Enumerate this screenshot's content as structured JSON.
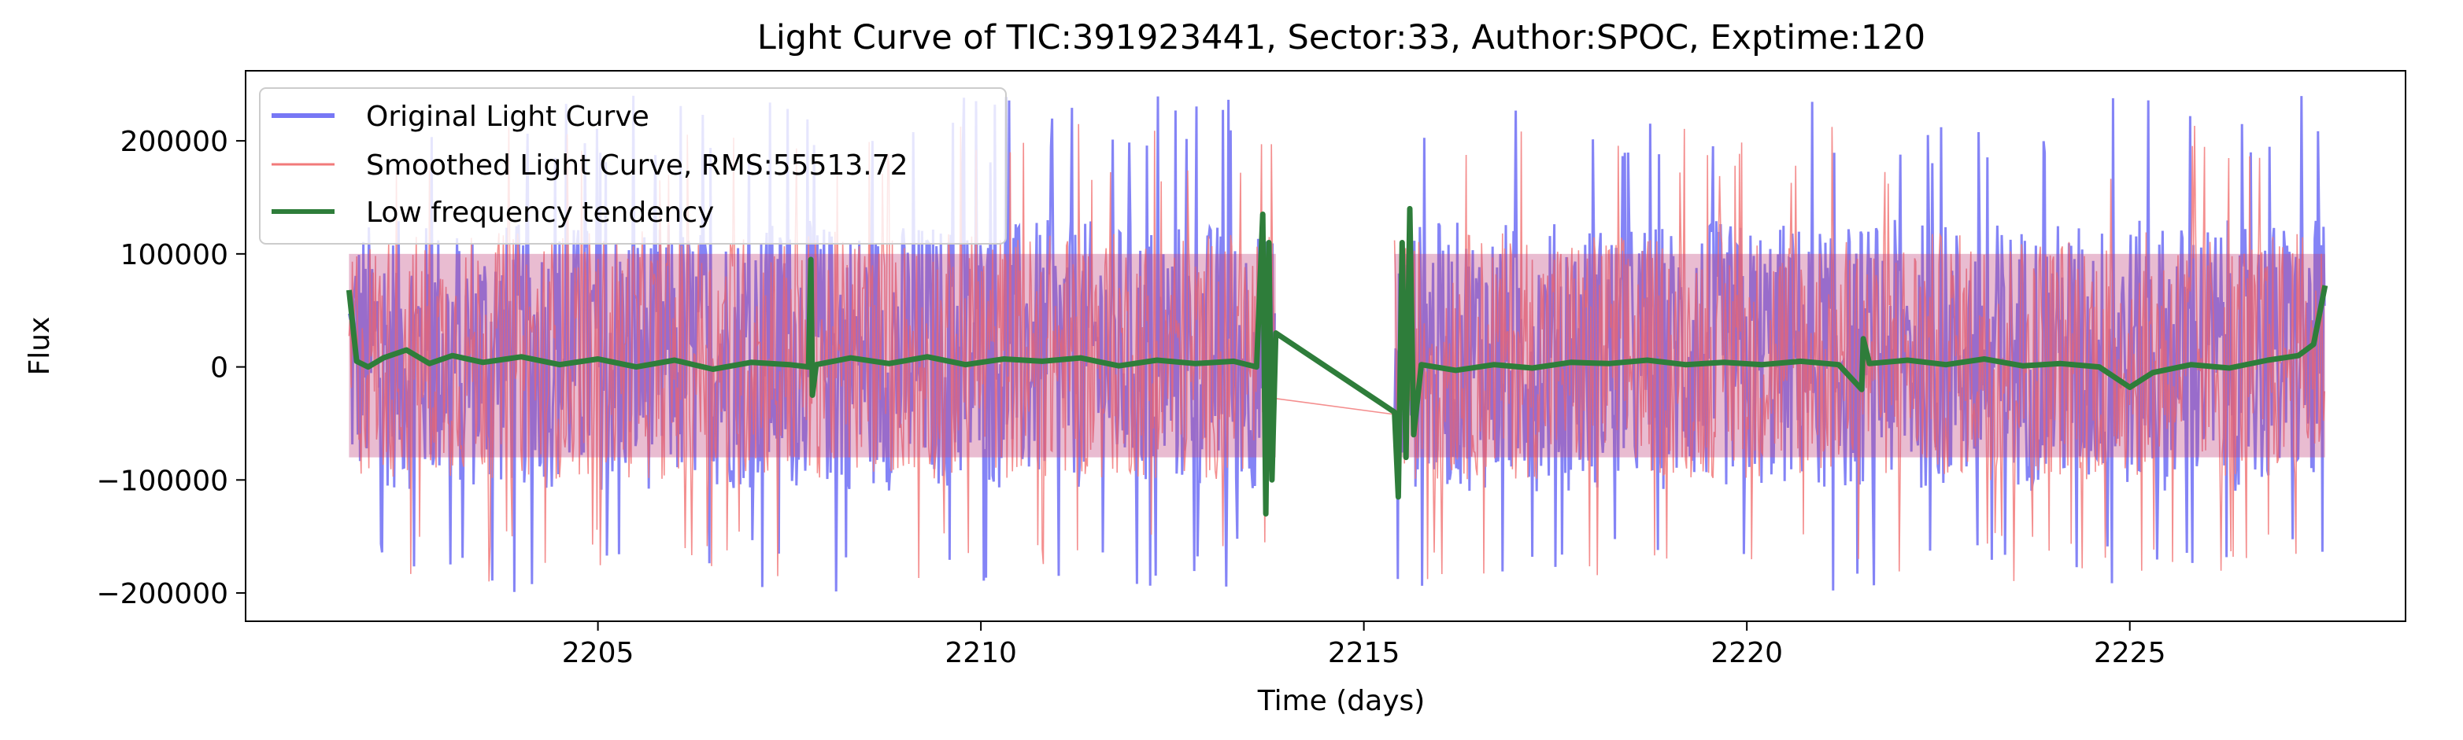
{
  "chart_data": {
    "type": "line",
    "title": "Light Curve of TIC:391923441, Sector:33, Author:SPOC, Exptime:120",
    "xlabel": "Time (days)",
    "ylabel": "Flux",
    "xlim": [
      2200.4,
      2228.6
    ],
    "ylim": [
      -225000,
      262000
    ],
    "xticks": [
      2205,
      2210,
      2215,
      2220,
      2225
    ],
    "xtick_labels": [
      "2205",
      "2210",
      "2215",
      "2220",
      "2225"
    ],
    "yticks": [
      -200000,
      -100000,
      0,
      100000,
      200000
    ],
    "ytick_labels": [
      "−200000",
      "−100000",
      "0",
      "100000",
      "200000"
    ],
    "grid": false,
    "legend_position": "top-left",
    "segments": [
      [
        2201.75,
        2213.85
      ],
      [
        2215.4,
        2227.55
      ]
    ],
    "series": [
      {
        "name": "Original Light Curve",
        "color": "#7777f5",
        "kind": "noise",
        "envelope_min": -200000,
        "envelope_max": 240000,
        "band": [
          -110000,
          130000
        ]
      },
      {
        "name": "Smoothed Light Curve, RMS:55513.72",
        "color": "#f27a7a",
        "kind": "noise",
        "envelope_min": -190000,
        "envelope_max": 215000,
        "band": [
          -100000,
          120000
        ]
      },
      {
        "name": "Low frequency tendency",
        "color": "#2e7d3a",
        "kind": "trend",
        "points": [
          [
            2201.75,
            68000
          ],
          [
            2201.85,
            5000
          ],
          [
            2202.0,
            0
          ],
          [
            2202.2,
            8000
          ],
          [
            2202.5,
            15000
          ],
          [
            2202.8,
            3000
          ],
          [
            2203.1,
            10000
          ],
          [
            2203.5,
            4000
          ],
          [
            2204.0,
            9000
          ],
          [
            2204.5,
            2000
          ],
          [
            2205.0,
            7000
          ],
          [
            2205.5,
            0
          ],
          [
            2206.0,
            6000
          ],
          [
            2206.5,
            -2000
          ],
          [
            2207.0,
            4000
          ],
          [
            2207.5,
            2000
          ],
          [
            2207.75,
            0
          ],
          [
            2207.78,
            95000
          ],
          [
            2207.8,
            -25000
          ],
          [
            2207.85,
            2000
          ],
          [
            2208.3,
            8000
          ],
          [
            2208.8,
            3000
          ],
          [
            2209.3,
            9000
          ],
          [
            2209.8,
            2000
          ],
          [
            2210.3,
            7000
          ],
          [
            2210.8,
            5000
          ],
          [
            2211.3,
            8000
          ],
          [
            2211.8,
            1000
          ],
          [
            2212.3,
            6000
          ],
          [
            2212.8,
            3000
          ],
          [
            2213.3,
            5000
          ],
          [
            2213.6,
            0
          ],
          [
            2213.68,
            135000
          ],
          [
            2213.72,
            -130000
          ],
          [
            2213.76,
            110000
          ],
          [
            2213.8,
            -100000
          ],
          [
            2213.85,
            30000
          ],
          [
            2215.4,
            -40000
          ],
          [
            2215.45,
            -115000
          ],
          [
            2215.5,
            110000
          ],
          [
            2215.55,
            -80000
          ],
          [
            2215.6,
            140000
          ],
          [
            2215.65,
            -60000
          ],
          [
            2215.75,
            2000
          ],
          [
            2216.2,
            -3000
          ],
          [
            2216.7,
            2000
          ],
          [
            2217.2,
            -1000
          ],
          [
            2217.7,
            4000
          ],
          [
            2218.2,
            3000
          ],
          [
            2218.7,
            6000
          ],
          [
            2219.2,
            2000
          ],
          [
            2219.7,
            4000
          ],
          [
            2220.2,
            2000
          ],
          [
            2220.7,
            5000
          ],
          [
            2221.2,
            2000
          ],
          [
            2221.5,
            -20000
          ],
          [
            2221.52,
            25000
          ],
          [
            2221.6,
            3000
          ],
          [
            2222.1,
            6000
          ],
          [
            2222.6,
            2000
          ],
          [
            2223.1,
            7000
          ],
          [
            2223.6,
            1000
          ],
          [
            2224.1,
            3000
          ],
          [
            2224.6,
            0
          ],
          [
            2225.0,
            -18000
          ],
          [
            2225.3,
            -5000
          ],
          [
            2225.8,
            2000
          ],
          [
            2226.3,
            -1000
          ],
          [
            2226.8,
            6000
          ],
          [
            2227.2,
            10000
          ],
          [
            2227.4,
            20000
          ],
          [
            2227.55,
            72000
          ]
        ]
      }
    ]
  }
}
